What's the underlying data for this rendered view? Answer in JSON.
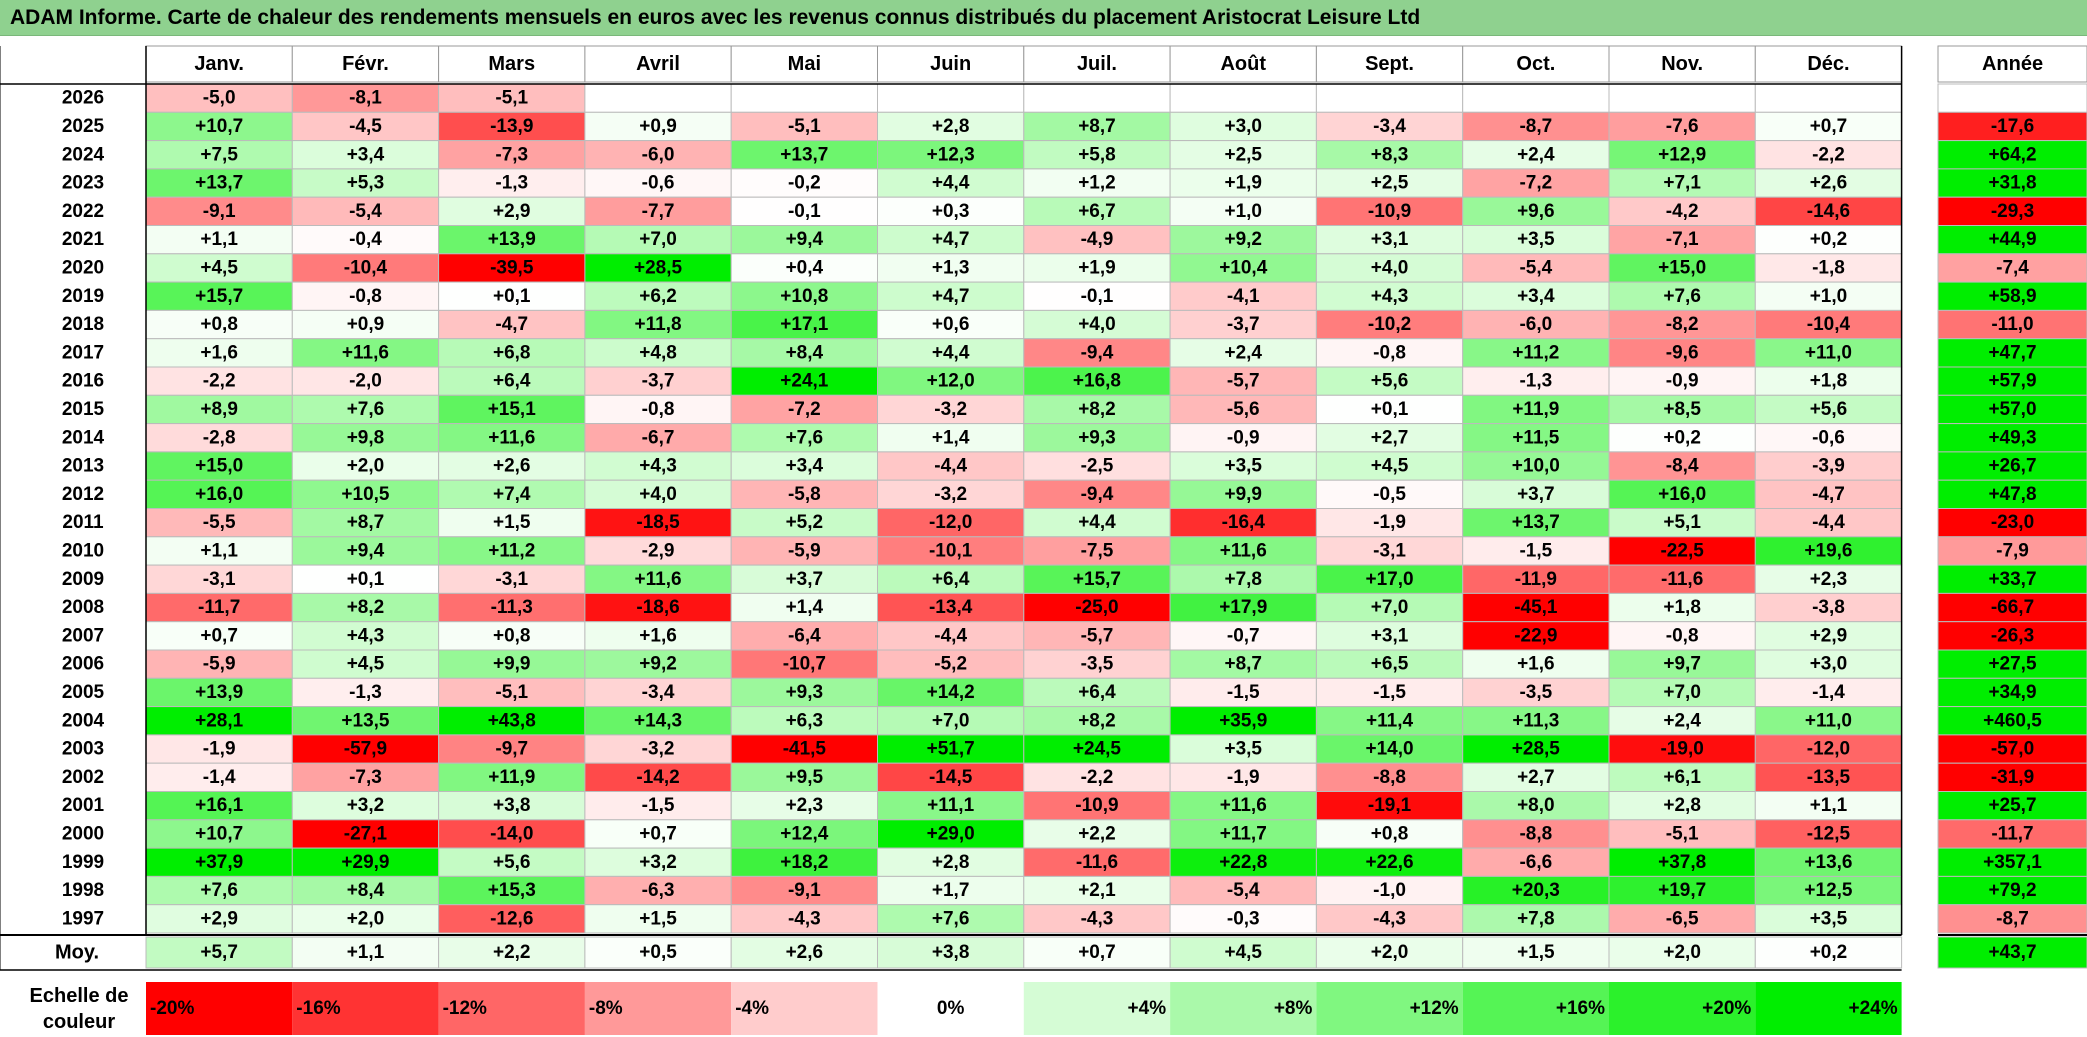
{
  "title": "ADAM Informe. Carte de chaleur des rendements mensuels en euros avec les revenus connus distribués du placement Aristocrat Leisure Ltd",
  "chart_data": {
    "type": "heatmap",
    "months": [
      "Janv.",
      "Févr.",
      "Mars",
      "Avril",
      "Mai",
      "Juin",
      "Juil.",
      "Août",
      "Sept.",
      "Oct.",
      "Nov.",
      "Déc."
    ],
    "year_header": "Année",
    "rows": [
      {
        "year": "2026",
        "values": [
          -5.0,
          -8.1,
          -5.1,
          null,
          null,
          null,
          null,
          null,
          null,
          null,
          null,
          null
        ],
        "annual": null
      },
      {
        "year": "2025",
        "values": [
          10.7,
          -4.5,
          -13.9,
          0.9,
          -5.1,
          2.8,
          8.7,
          3.0,
          -3.4,
          -8.7,
          -7.6,
          0.7
        ],
        "annual": -17.6
      },
      {
        "year": "2024",
        "values": [
          7.5,
          3.4,
          -7.3,
          -6.0,
          13.7,
          12.3,
          5.8,
          2.5,
          8.3,
          2.4,
          12.9,
          -2.2
        ],
        "annual": 64.2
      },
      {
        "year": "2023",
        "values": [
          13.7,
          5.3,
          -1.3,
          -0.6,
          -0.2,
          4.4,
          1.2,
          1.9,
          2.5,
          -7.2,
          7.1,
          2.6
        ],
        "annual": 31.8
      },
      {
        "year": "2022",
        "values": [
          -9.1,
          -5.4,
          2.9,
          -7.7,
          -0.1,
          0.3,
          6.7,
          1.0,
          -10.9,
          9.6,
          -4.2,
          -14.6
        ],
        "annual": -29.3
      },
      {
        "year": "2021",
        "values": [
          1.1,
          -0.4,
          13.9,
          7.0,
          9.4,
          4.7,
          -4.9,
          9.2,
          3.1,
          3.5,
          -7.1,
          0.2
        ],
        "annual": 44.9
      },
      {
        "year": "2020",
        "values": [
          4.5,
          -10.4,
          -39.5,
          28.5,
          0.4,
          1.3,
          1.9,
          10.4,
          4.0,
          -5.4,
          15.0,
          -1.8
        ],
        "annual": -7.4
      },
      {
        "year": "2019",
        "values": [
          15.7,
          -0.8,
          0.1,
          6.2,
          10.8,
          4.7,
          -0.1,
          -4.1,
          4.3,
          3.4,
          7.6,
          1.0
        ],
        "annual": 58.9
      },
      {
        "year": "2018",
        "values": [
          0.8,
          0.9,
          -4.7,
          11.8,
          17.1,
          0.6,
          4.0,
          -3.7,
          -10.2,
          -6.0,
          -8.2,
          -10.4
        ],
        "annual": -11.0
      },
      {
        "year": "2017",
        "values": [
          1.6,
          11.6,
          6.8,
          4.8,
          8.4,
          4.4,
          -9.4,
          2.4,
          -0.8,
          11.2,
          -9.6,
          11.0
        ],
        "annual": 47.7
      },
      {
        "year": "2016",
        "values": [
          -2.2,
          -2.0,
          6.4,
          -3.7,
          24.1,
          12.0,
          16.8,
          -5.7,
          5.6,
          -1.3,
          -0.9,
          1.8
        ],
        "annual": 57.9
      },
      {
        "year": "2015",
        "values": [
          8.9,
          7.6,
          15.1,
          -0.8,
          -7.2,
          -3.2,
          8.2,
          -5.6,
          0.1,
          11.9,
          8.5,
          5.6
        ],
        "annual": 57.0
      },
      {
        "year": "2014",
        "values": [
          -2.8,
          9.8,
          11.6,
          -6.7,
          7.6,
          1.4,
          9.3,
          -0.9,
          2.7,
          11.5,
          0.2,
          -0.6
        ],
        "annual": 49.3
      },
      {
        "year": "2013",
        "values": [
          15.0,
          2.0,
          2.6,
          4.3,
          3.4,
          -4.4,
          -2.5,
          3.5,
          4.5,
          10.0,
          -8.4,
          -3.9
        ],
        "annual": 26.7
      },
      {
        "year": "2012",
        "values": [
          16.0,
          10.5,
          7.4,
          4.0,
          -5.8,
          -3.2,
          -9.4,
          9.9,
          -0.5,
          3.7,
          16.0,
          -4.7
        ],
        "annual": 47.8
      },
      {
        "year": "2011",
        "values": [
          -5.5,
          8.7,
          1.5,
          -18.5,
          5.2,
          -12.0,
          4.4,
          -16.4,
          -1.9,
          13.7,
          5.1,
          -4.4
        ],
        "annual": -23.0
      },
      {
        "year": "2010",
        "values": [
          1.1,
          9.4,
          11.2,
          -2.9,
          -5.9,
          -10.1,
          -7.5,
          11.6,
          -3.1,
          -1.5,
          -22.5,
          19.6
        ],
        "annual": -7.9
      },
      {
        "year": "2009",
        "values": [
          -3.1,
          0.1,
          -3.1,
          11.6,
          3.7,
          6.4,
          15.7,
          7.8,
          17.0,
          -11.9,
          -11.6,
          2.3
        ],
        "annual": 33.7
      },
      {
        "year": "2008",
        "values": [
          -11.7,
          8.2,
          -11.3,
          -18.6,
          1.4,
          -13.4,
          -25.0,
          17.9,
          7.0,
          -45.1,
          1.8,
          -3.8
        ],
        "annual": -66.7
      },
      {
        "year": "2007",
        "values": [
          0.7,
          4.3,
          0.8,
          1.6,
          -6.4,
          -4.4,
          -5.7,
          -0.7,
          3.1,
          -22.9,
          -0.8,
          2.9
        ],
        "annual": -26.3
      },
      {
        "year": "2006",
        "values": [
          -5.9,
          4.5,
          9.9,
          9.2,
          -10.7,
          -5.2,
          -3.5,
          8.7,
          6.5,
          1.6,
          9.7,
          3.0
        ],
        "annual": 27.5
      },
      {
        "year": "2005",
        "values": [
          13.9,
          -1.3,
          -5.1,
          -3.4,
          9.3,
          14.2,
          6.4,
          -1.5,
          -1.5,
          -3.5,
          7.0,
          -1.4
        ],
        "annual": 34.9
      },
      {
        "year": "2004",
        "values": [
          28.1,
          13.5,
          43.8,
          14.3,
          6.3,
          7.0,
          8.2,
          35.9,
          11.4,
          11.3,
          2.4,
          11.0
        ],
        "annual": 460.5
      },
      {
        "year": "2003",
        "values": [
          -1.9,
          -57.9,
          -9.7,
          -3.2,
          -41.5,
          51.7,
          24.5,
          3.5,
          14.0,
          28.5,
          -19.0,
          -12.0
        ],
        "annual": -57.0
      },
      {
        "year": "2002",
        "values": [
          -1.4,
          -7.3,
          11.9,
          -14.2,
          9.5,
          -14.5,
          -2.2,
          -1.9,
          -8.8,
          2.7,
          6.1,
          -13.5
        ],
        "annual": -31.9
      },
      {
        "year": "2001",
        "values": [
          16.1,
          3.2,
          3.8,
          -1.5,
          2.3,
          11.1,
          -10.9,
          11.6,
          -19.1,
          8.0,
          2.8,
          1.1
        ],
        "annual": 25.7
      },
      {
        "year": "2000",
        "values": [
          10.7,
          -27.1,
          -14.0,
          0.7,
          12.4,
          29.0,
          2.2,
          11.7,
          0.8,
          -8.8,
          -5.1,
          -12.5
        ],
        "annual": -11.7
      },
      {
        "year": "1999",
        "values": [
          37.9,
          29.9,
          5.6,
          3.2,
          18.2,
          2.8,
          -11.6,
          22.8,
          22.6,
          -6.6,
          37.8,
          13.6
        ],
        "annual": 357.1
      },
      {
        "year": "1998",
        "values": [
          7.6,
          8.4,
          15.3,
          -6.3,
          -9.1,
          1.7,
          2.1,
          -5.4,
          -1.0,
          20.3,
          19.7,
          12.5
        ],
        "annual": 79.2
      },
      {
        "year": "1997",
        "values": [
          2.9,
          2.0,
          -12.6,
          1.5,
          -4.3,
          7.6,
          -4.3,
          -0.3,
          -4.3,
          7.8,
          -6.5,
          3.5
        ],
        "annual": -8.7
      }
    ],
    "average_label": "Moy.",
    "average_values": [
      5.7,
      1.1,
      2.2,
      0.5,
      2.6,
      3.8,
      0.7,
      4.5,
      2.0,
      1.5,
      2.0,
      0.2
    ],
    "average_annual": 43.7,
    "scale_label_line1": "Echelle de",
    "scale_label_line2": "couleur",
    "scale": [
      {
        "label": "-20%",
        "value": -20
      },
      {
        "label": "-16%",
        "value": -16
      },
      {
        "label": "-12%",
        "value": -12
      },
      {
        "label": "-8%",
        "value": -8
      },
      {
        "label": "-4%",
        "value": -4
      },
      {
        "label": "0%",
        "value": 0
      },
      {
        "label": "+4%",
        "value": 4
      },
      {
        "label": "+8%",
        "value": 8
      },
      {
        "label": "+12%",
        "value": 12
      },
      {
        "label": "+16%",
        "value": 16
      },
      {
        "label": "+20%",
        "value": 20
      },
      {
        "label": "+24%",
        "value": 24
      }
    ],
    "colors": {
      "title_bar": "#8fd18f",
      "strong_red": "#ff0000",
      "white": "#ffffff",
      "strong_green": "#00ee00"
    }
  }
}
